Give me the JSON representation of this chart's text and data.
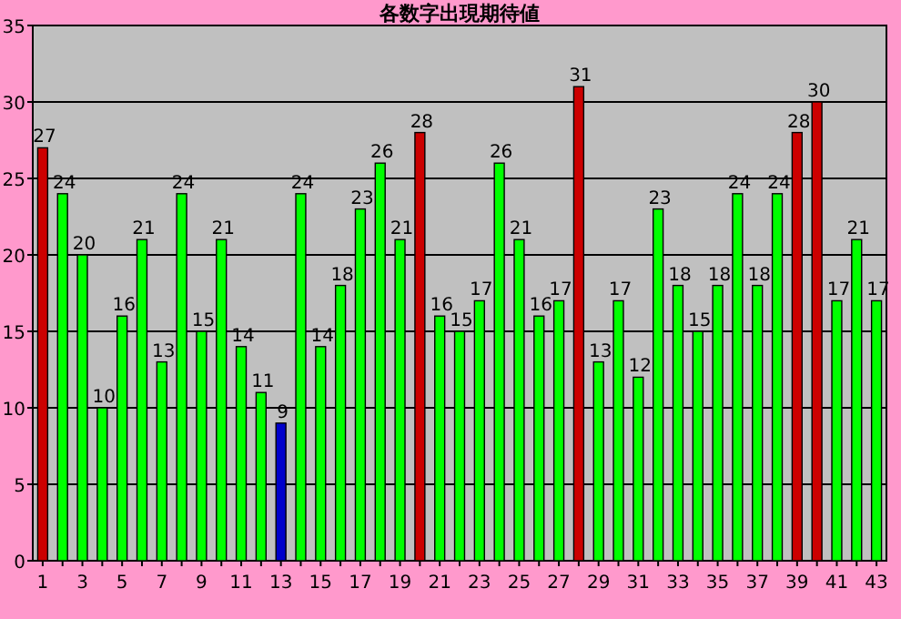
{
  "chart_data": {
    "type": "bar",
    "title": "各数字出現期待値",
    "categories": [
      "1",
      null,
      "3",
      null,
      "5",
      null,
      "7",
      null,
      "9",
      null,
      "11",
      null,
      "13",
      null,
      "15",
      null,
      "17",
      null,
      "19",
      null,
      "21",
      null,
      "23",
      null,
      "25",
      null,
      "27",
      null,
      "29",
      null,
      "31",
      null,
      "33",
      null,
      "35",
      null,
      "37",
      null,
      "39",
      null,
      "41",
      null,
      "43"
    ],
    "values": [
      27,
      24,
      20,
      10,
      16,
      21,
      13,
      24,
      15,
      21,
      14,
      11,
      9,
      24,
      14,
      18,
      23,
      26,
      21,
      28,
      16,
      15,
      17,
      26,
      21,
      16,
      17,
      31,
      13,
      17,
      12,
      23,
      18,
      15,
      18,
      24,
      18,
      24,
      28,
      30,
      17,
      21,
      17
    ],
    "colors": [
      "#cc0000",
      "#00ff00",
      "#00ff00",
      "#00ff00",
      "#00ff00",
      "#00ff00",
      "#00ff00",
      "#00ff00",
      "#00ff00",
      "#00ff00",
      "#00ff00",
      "#00ff00",
      "#0000cc",
      "#00ff00",
      "#00ff00",
      "#00ff00",
      "#00ff00",
      "#00ff00",
      "#00ff00",
      "#cc0000",
      "#00ff00",
      "#00ff00",
      "#00ff00",
      "#00ff00",
      "#00ff00",
      "#00ff00",
      "#00ff00",
      "#cc0000",
      "#00ff00",
      "#00ff00",
      "#00ff00",
      "#00ff00",
      "#00ff00",
      "#00ff00",
      "#00ff00",
      "#00ff00",
      "#00ff00",
      "#00ff00",
      "#cc0000",
      "#cc0000",
      "#00ff00",
      "#00ff00",
      "#00ff00"
    ],
    "ylim": [
      0,
      35
    ],
    "yticks": [
      0,
      5,
      10,
      15,
      20,
      25,
      30,
      35
    ],
    "grid": "y",
    "data_labels": true
  }
}
